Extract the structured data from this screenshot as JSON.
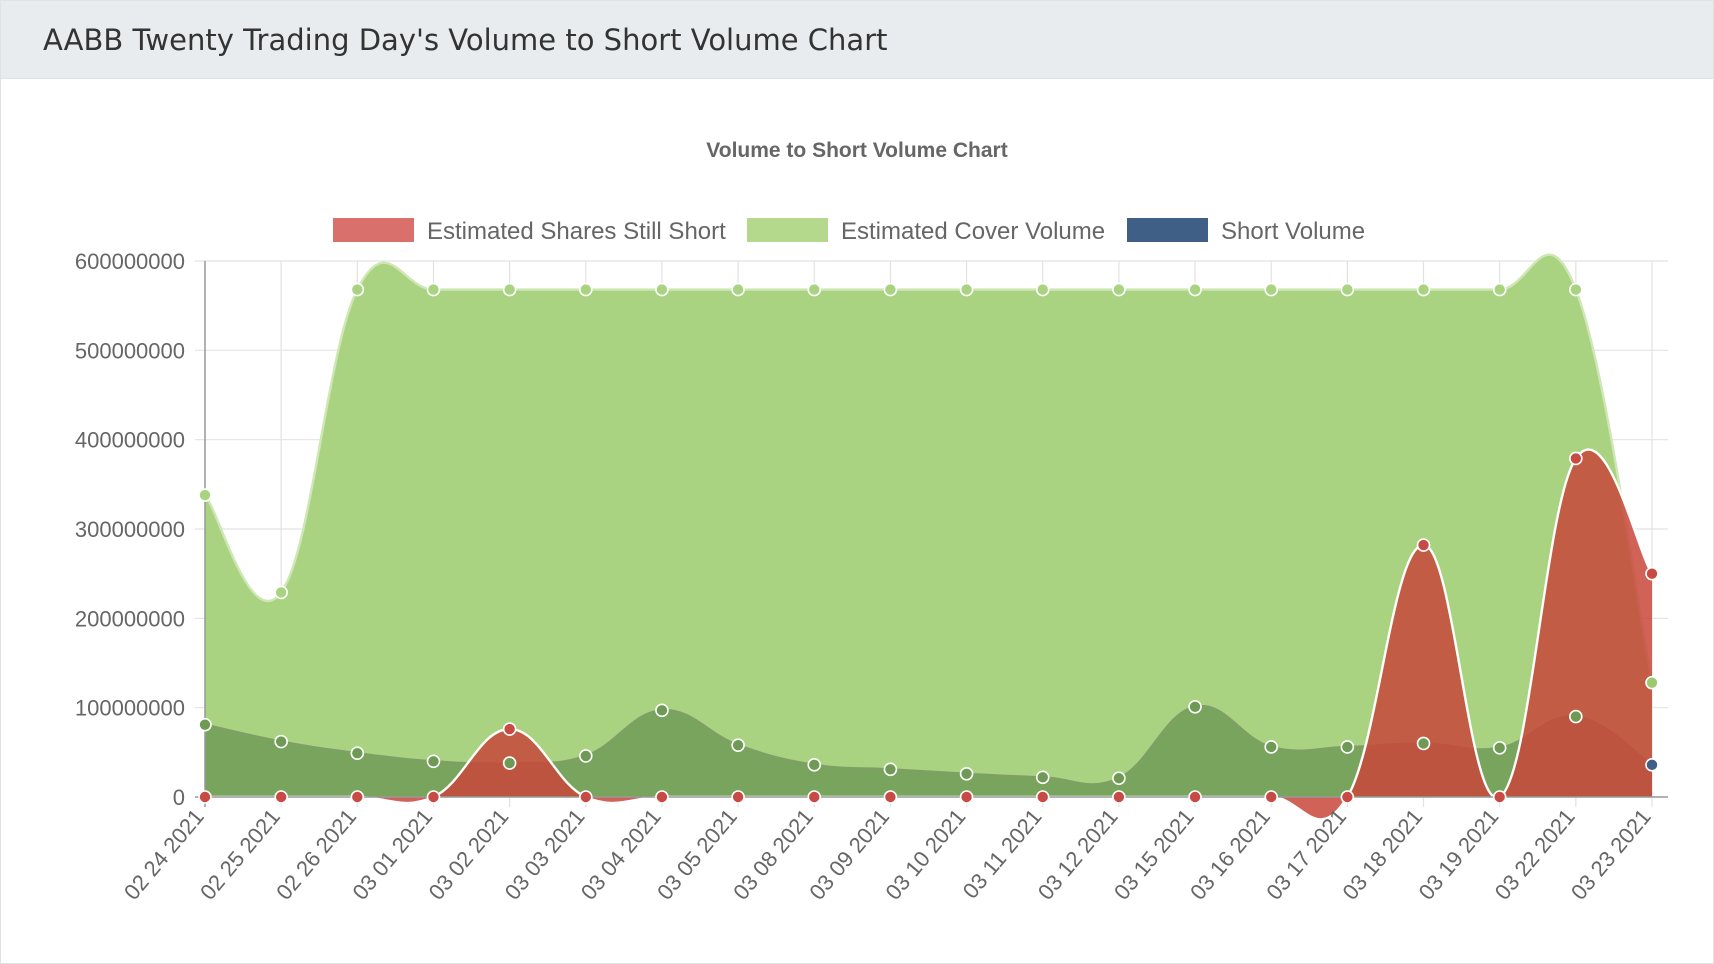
{
  "page": {
    "header_title": "AABB Twenty Trading Day's Volume to Short Volume Chart"
  },
  "colors": {
    "still_short": "#c8473b",
    "cover": "#a9d381",
    "short": "#6e9a55",
    "legend_still_short": "#d9706b",
    "legend_cover": "#b4d88c",
    "legend_short": "#3f5f86"
  },
  "chart_data": {
    "type": "area",
    "title": "Volume to Short Volume Chart",
    "legend_position": "top",
    "grid": true,
    "ylim": [
      0,
      600000000
    ],
    "yticks": [
      "0",
      "100000000",
      "200000000",
      "300000000",
      "400000000",
      "500000000",
      "600000000"
    ],
    "categories": [
      "02 24 2021",
      "02 25 2021",
      "02 26 2021",
      "03 01 2021",
      "03 02 2021",
      "03 03 2021",
      "03 04 2021",
      "03 05 2021",
      "03 08 2021",
      "03 09 2021",
      "03 10 2021",
      "03 11 2021",
      "03 12 2021",
      "03 15 2021",
      "03 16 2021",
      "03 17 2021",
      "03 18 2021",
      "03 19 2021",
      "03 22 2021",
      "03 23 2021"
    ],
    "series": [
      {
        "name": "Estimated Shares Still Short",
        "values": [
          0,
          0,
          0,
          0,
          76000000,
          0,
          0,
          0,
          0,
          0,
          0,
          0,
          0,
          0,
          0,
          0,
          282000000,
          0,
          379000000,
          250000000
        ]
      },
      {
        "name": "Estimated Cover Volume",
        "values": [
          338000000,
          229000000,
          568000000,
          568000000,
          568000000,
          568000000,
          568000000,
          568000000,
          568000000,
          568000000,
          568000000,
          568000000,
          568000000,
          568000000,
          568000000,
          568000000,
          568000000,
          568000000,
          568000000,
          128000000
        ]
      },
      {
        "name": "Short Volume",
        "values": [
          81000000,
          62000000,
          49000000,
          40000000,
          38000000,
          46000000,
          97000000,
          58000000,
          36000000,
          31000000,
          26000000,
          22000000,
          21000000,
          101000000,
          56000000,
          56000000,
          60000000,
          55000000,
          90000000,
          36000000
        ]
      }
    ]
  }
}
